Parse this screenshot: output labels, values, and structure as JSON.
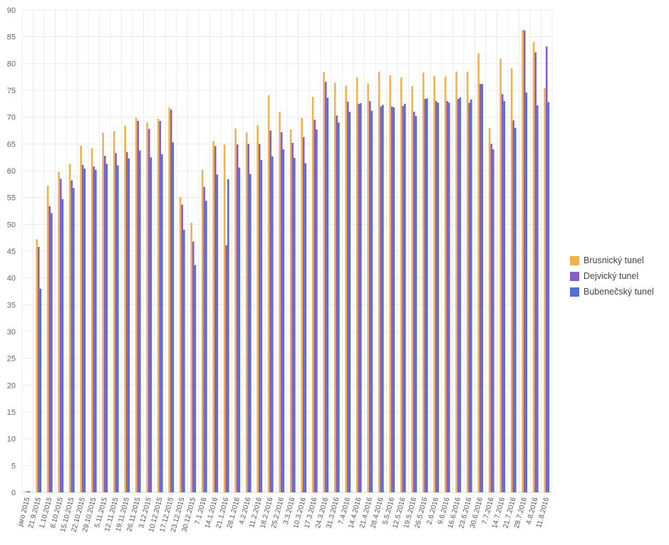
{
  "chart_data": {
    "type": "bar",
    "categories": [
      "jaro 2015",
      "21.9.2015",
      "1.10.2015",
      "8.10.2015",
      "15.10.2015",
      "22.10.2015",
      "29.10.2015",
      "5.11.2015",
      "12.11.2015",
      "19.11.2015",
      "26.11.2015",
      "3.12.2015",
      "10.12.2015",
      "17.12.2015",
      "23.12.2015",
      "30.12.2015",
      "7.1.2016",
      "14.1.2016",
      "21.1.2016",
      "28.1.2016",
      "4.2.2016",
      "11.2.2016",
      "18.2.2016",
      "25.2.2016",
      "3.3.2016",
      "10.3.2016",
      "17.3.2016",
      "24.3.2016",
      "31.3.2016",
      "7.4.2016",
      "14.4.2016",
      "21.4.2016",
      "28.4.2016",
      "5.5.2016",
      "12.5.2016",
      "19.5.2016",
      "26.5.2016",
      "2.6.2016",
      "9.6.2016",
      "16.6.2016",
      "23.6.2016",
      "30.6.2016",
      "7.7.2016",
      "14.7.2016",
      "21.7.2016",
      "28.7.2016",
      "4.8.2016",
      "11.8.2016"
    ],
    "series": [
      {
        "name": "Brusnický tunel",
        "color": "#f0b24f",
        "values": [
          0.2,
          47.2,
          57.2,
          59.8,
          61.3,
          64.7,
          64.2,
          67.1,
          67.4,
          68.4,
          69.9,
          69.0,
          69.7,
          71.8,
          55.1,
          50.3,
          60.2,
          65.5,
          64.9,
          67.9,
          67.1,
          68.5,
          74.1,
          71.0,
          67.7,
          69.9,
          73.8,
          78.4,
          76.4,
          75.9,
          77.4,
          76.3,
          78.5,
          77.8,
          77.4,
          75.8,
          78.3,
          77.7,
          77.6,
          78.5,
          78.5,
          81.9,
          68.0,
          80.9,
          79.1,
          86.3,
          84.0,
          75.4
        ]
      },
      {
        "name": "Dejvický tunel",
        "color": "#8a5fc4",
        "values": [
          0.2,
          45.8,
          53.4,
          58.5,
          58.2,
          61.1,
          60.8,
          62.8,
          63.3,
          63.5,
          69.3,
          67.8,
          69.3,
          71.4,
          53.7,
          46.8,
          57.0,
          64.6,
          46.1,
          64.9,
          65.0,
          65.0,
          67.5,
          67.2,
          65.2,
          66.3,
          69.5,
          76.6,
          70.3,
          72.9,
          72.5,
          73.0,
          72.0,
          72.0,
          72.1,
          71.0,
          73.4,
          73.0,
          73.0,
          73.4,
          72.7,
          76.2,
          65.0,
          74.3,
          69.4,
          86.2,
          82.1,
          83.2
        ]
      },
      {
        "name": "Bubenečský tunel",
        "color": "#5570d3",
        "values": [
          0.2,
          38.0,
          52.1,
          54.7,
          56.8,
          60.4,
          60.2,
          61.3,
          61.0,
          62.3,
          63.8,
          62.5,
          63.1,
          65.3,
          49.0,
          42.4,
          54.4,
          59.3,
          58.4,
          60.6,
          59.4,
          62.0,
          62.7,
          64.0,
          62.4,
          61.4,
          67.7,
          73.6,
          69.0,
          71.0,
          72.6,
          71.2,
          72.3,
          71.8,
          72.5,
          70.2,
          73.5,
          72.7,
          72.7,
          73.7,
          73.3,
          76.2,
          64.0,
          73.0,
          68.0,
          74.6,
          72.2,
          72.8
        ]
      }
    ],
    "xlabel": "",
    "ylabel": "",
    "ylim": [
      0,
      90
    ],
    "yticks": [
      0,
      5,
      10,
      15,
      20,
      25,
      30,
      35,
      40,
      45,
      50,
      55,
      60,
      65,
      70,
      75,
      80,
      85,
      90
    ],
    "grid": true,
    "legend_position": "right"
  }
}
